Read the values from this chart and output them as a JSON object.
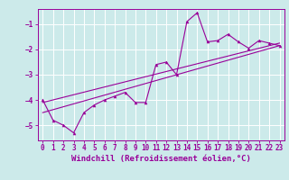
{
  "background_color": "#cceaea",
  "line_color": "#990099",
  "grid_color": "#ffffff",
  "xlabel": "Windchill (Refroidissement éolien,°C)",
  "ylim": [
    -5.6,
    -0.4
  ],
  "xlim": [
    -0.5,
    23.5
  ],
  "yticks": [
    -5,
    -4,
    -3,
    -2,
    -1
  ],
  "xticks": [
    0,
    1,
    2,
    3,
    4,
    5,
    6,
    7,
    8,
    9,
    10,
    11,
    12,
    13,
    14,
    15,
    16,
    17,
    18,
    19,
    20,
    21,
    22,
    23
  ],
  "series1_x": [
    0,
    1,
    2,
    3,
    4,
    5,
    6,
    7,
    8,
    9,
    10,
    11,
    12,
    13,
    14,
    15,
    16,
    17,
    18,
    19,
    20,
    21,
    22,
    23
  ],
  "series1_y": [
    -4.0,
    -4.8,
    -5.0,
    -5.3,
    -4.5,
    -4.2,
    -4.0,
    -3.85,
    -3.7,
    -4.1,
    -4.1,
    -2.6,
    -2.5,
    -3.0,
    -0.9,
    -0.55,
    -1.7,
    -1.65,
    -1.4,
    -1.7,
    -1.95,
    -1.65,
    -1.75,
    -1.85
  ],
  "series2_x": [
    0,
    23
  ],
  "series2_y": [
    -4.1,
    -1.75
  ],
  "series3_x": [
    0,
    23
  ],
  "series3_y": [
    -4.5,
    -1.85
  ],
  "tick_fontsize": 5.5,
  "xlabel_fontsize": 6.5
}
